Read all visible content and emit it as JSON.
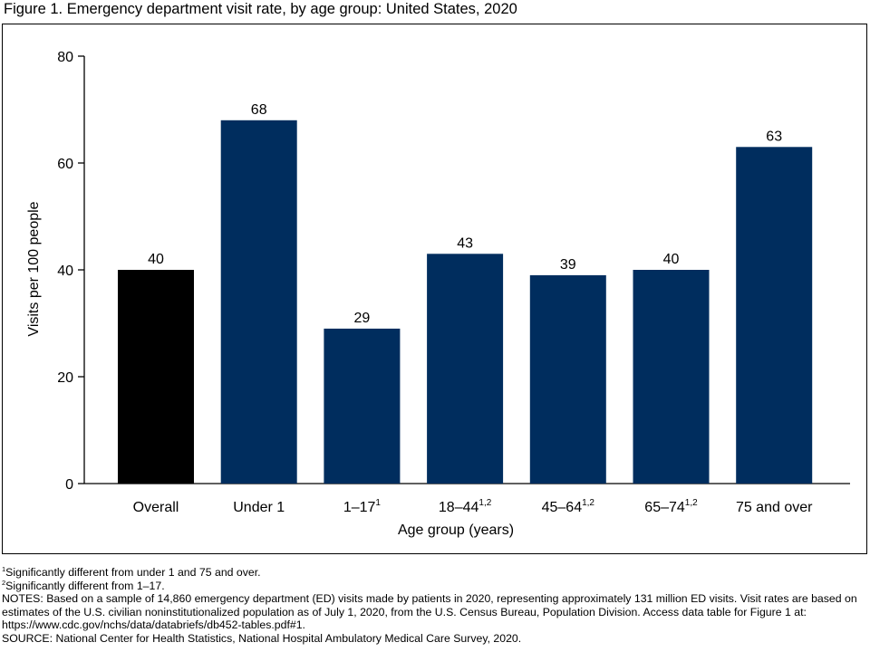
{
  "figure_title": "Figure 1. Emergency department visit rate, by age group: United States, 2020",
  "chart_data": {
    "type": "bar",
    "categories": [
      "Overall",
      "Under 1",
      "1–17",
      "18–44",
      "45–64",
      "65–74",
      "75 and over"
    ],
    "category_superscripts": [
      "",
      "",
      "1",
      "1,2",
      "1,2",
      "1,2",
      ""
    ],
    "values": [
      40,
      68,
      29,
      43,
      39,
      40,
      63
    ],
    "bar_colors": [
      "#000000",
      "#002D5E",
      "#002D5E",
      "#002D5E",
      "#002D5E",
      "#002D5E",
      "#002D5E"
    ],
    "xlabel": "Age group (years)",
    "ylabel": "Visits per 100 people",
    "ylim": [
      0,
      80
    ],
    "yticks": [
      0,
      20,
      40,
      60,
      80
    ],
    "grid": false
  },
  "footnotes": [
    {
      "sup": "1",
      "text": "Significantly different from under 1 and 75 and over."
    },
    {
      "sup": "2",
      "text": "Significantly different from 1–17."
    }
  ],
  "notes": "NOTES: Based on a sample of 14,860 emergency department (ED) visits made by patients in 2020, representing approximately 131 million ED visits. Visit rates are based on estimates of the U.S. civilian noninstitutionalized population as of July 1, 2020, from the U.S. Census Bureau, Population Division. Access data table for Figure 1 at: https://www.cdc.gov/nchs/data/databriefs/db452-tables.pdf#1.",
  "source": "SOURCE: National Center for Health Statistics, National Hospital Ambulatory Medical Care Survey, 2020."
}
